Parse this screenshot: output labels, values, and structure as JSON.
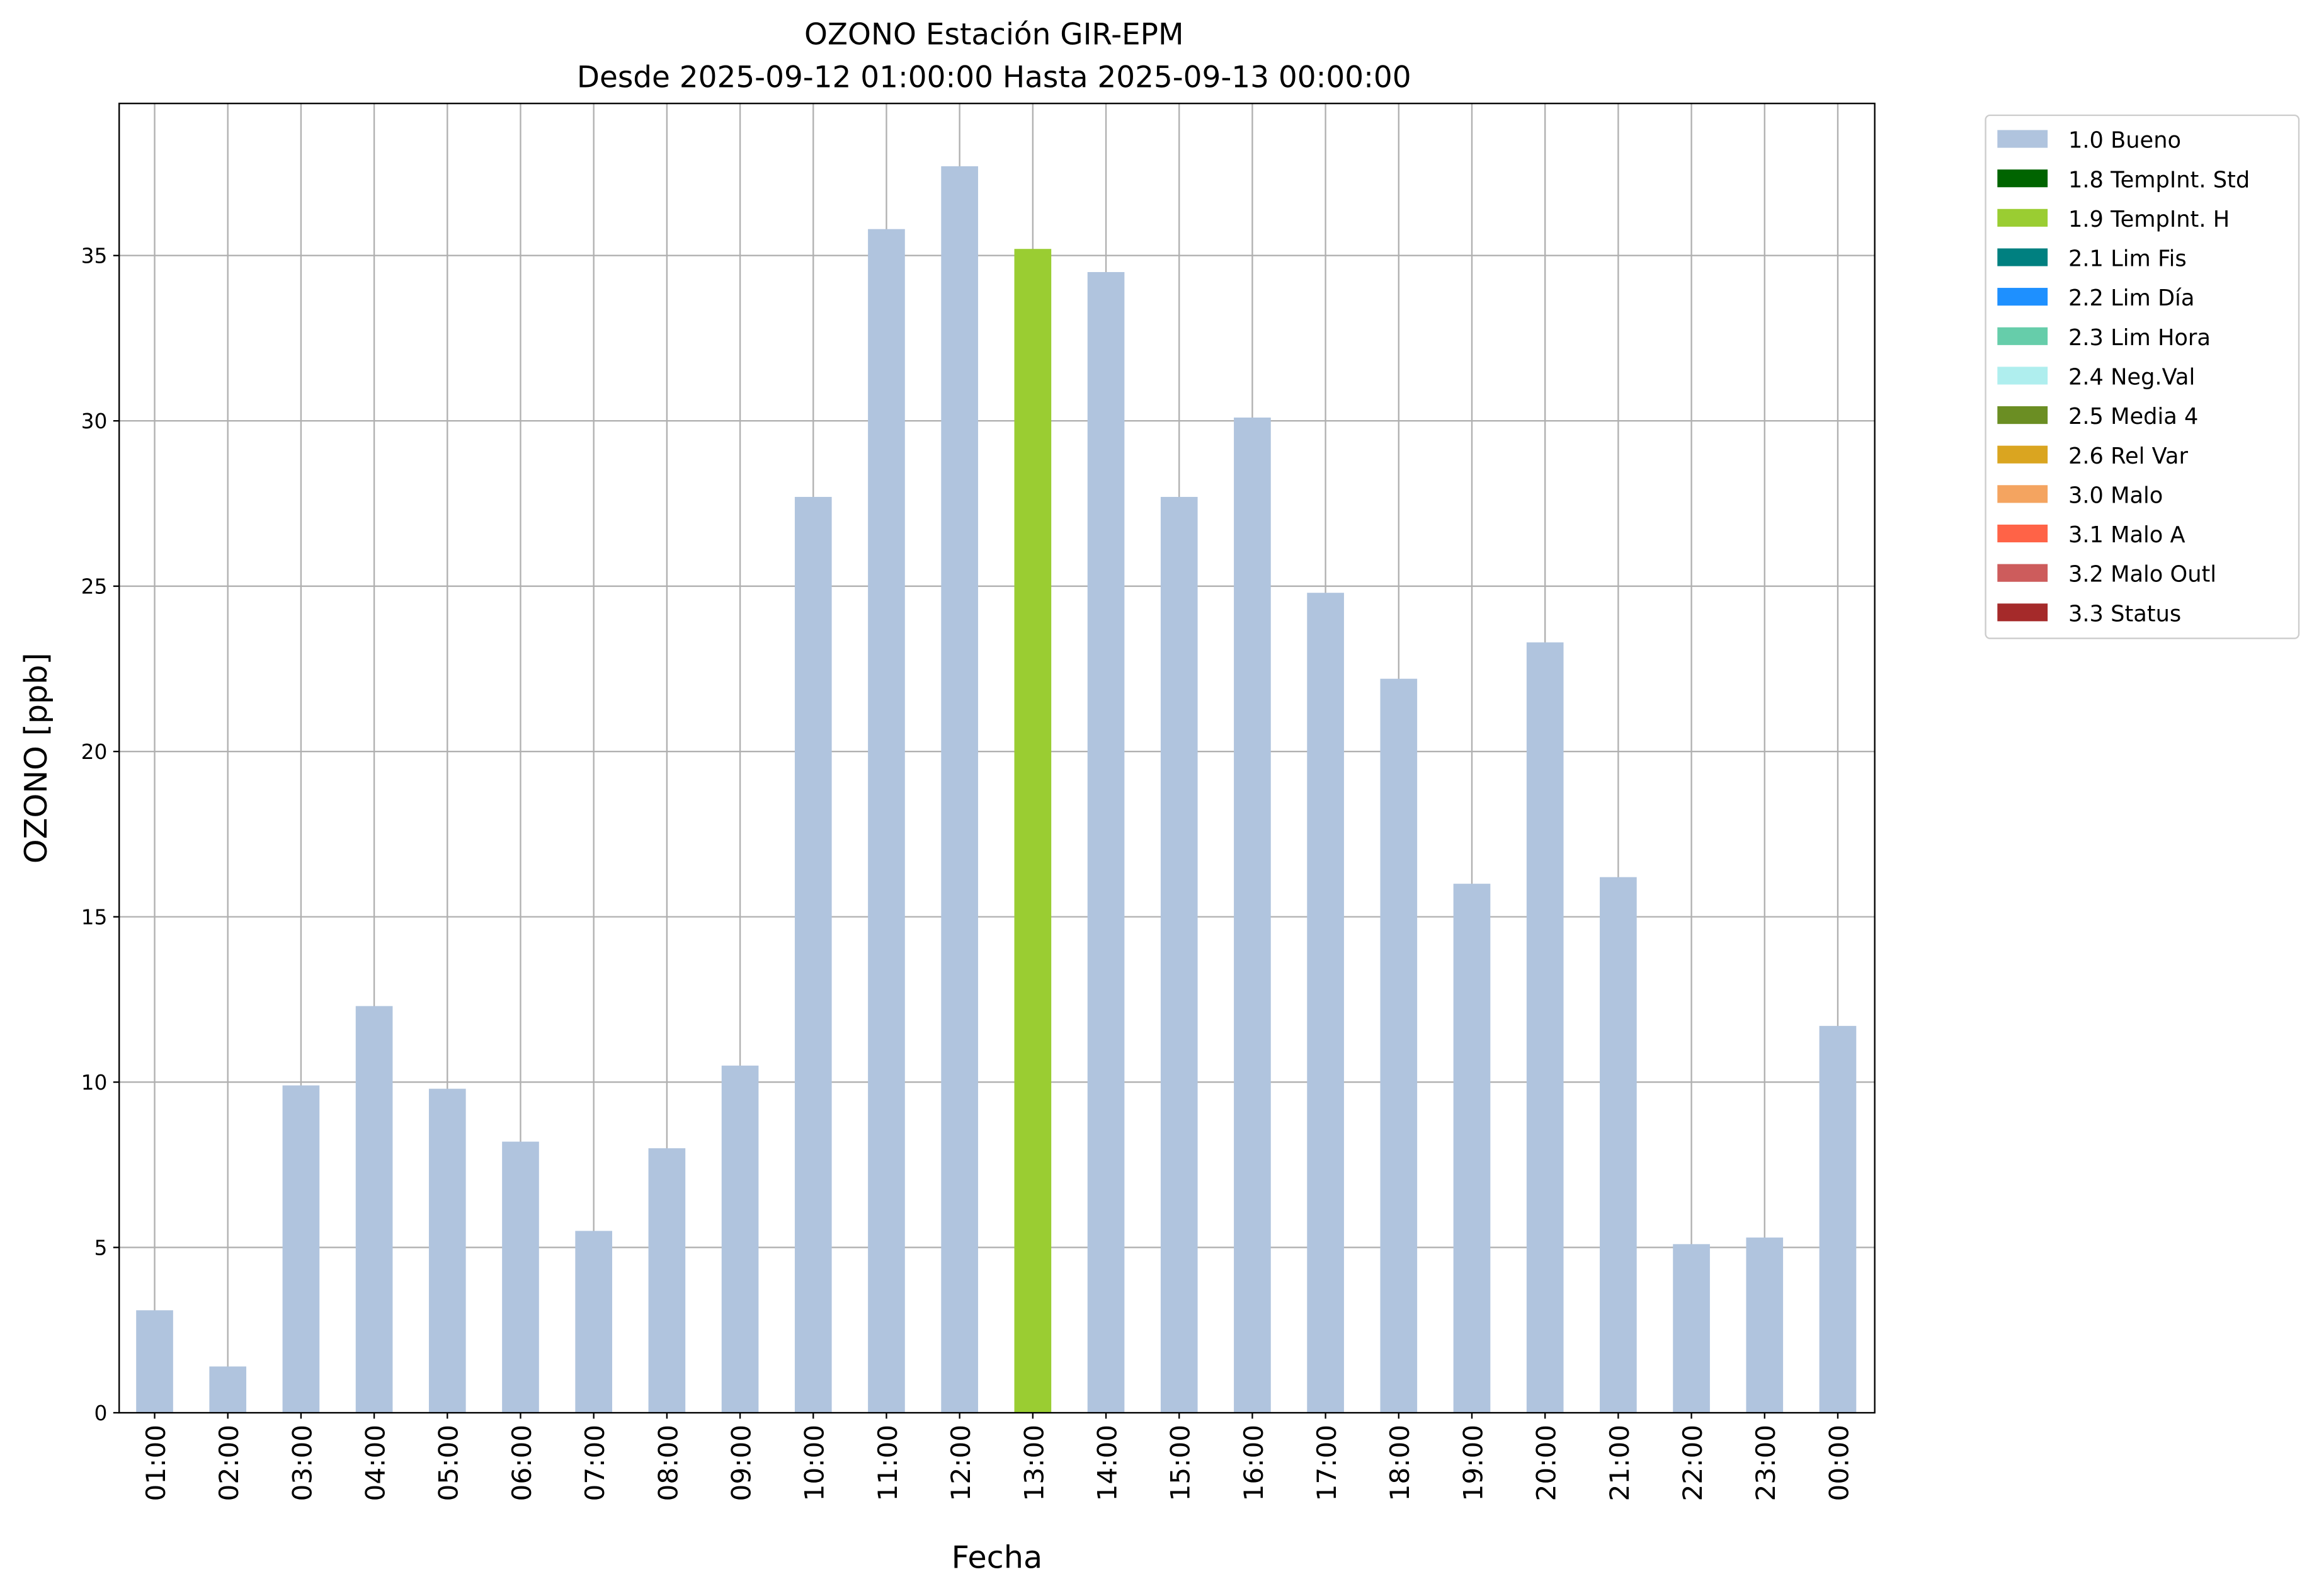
{
  "chart_data": {
    "type": "bar",
    "title": "OZONO Estación GIR-EPM",
    "subtitle": "Desde 2025-09-12 01:00:00 Hasta 2025-09-13 00:00:00",
    "xlabel": "Fecha",
    "ylabel": "OZONO [ppb]",
    "ylim": [
      0,
      39.6
    ],
    "yticks": [
      0,
      5,
      10,
      15,
      20,
      25,
      30,
      35
    ],
    "grid": true,
    "legend_placement": "outside-top-right",
    "categories": [
      "01:00",
      "02:00",
      "03:00",
      "04:00",
      "05:00",
      "06:00",
      "07:00",
      "08:00",
      "09:00",
      "10:00",
      "11:00",
      "12:00",
      "13:00",
      "14:00",
      "15:00",
      "16:00",
      "17:00",
      "18:00",
      "19:00",
      "20:00",
      "21:00",
      "22:00",
      "23:00",
      "00:00"
    ],
    "values": [
      3.1,
      1.4,
      9.9,
      12.3,
      9.8,
      8.2,
      5.5,
      8.0,
      10.5,
      27.7,
      35.8,
      37.7,
      35.2,
      34.5,
      27.7,
      30.1,
      24.8,
      22.2,
      16.0,
      23.3,
      16.2,
      5.1,
      5.3,
      11.7
    ],
    "flags": [
      "1.0 Bueno",
      "1.0 Bueno",
      "1.0 Bueno",
      "1.0 Bueno",
      "1.0 Bueno",
      "1.0 Bueno",
      "1.0 Bueno",
      "1.0 Bueno",
      "1.0 Bueno",
      "1.0 Bueno",
      "1.0 Bueno",
      "1.0 Bueno",
      "1.9 TempInt. H",
      "1.0 Bueno",
      "1.0 Bueno",
      "1.0 Bueno",
      "1.0 Bueno",
      "1.0 Bueno",
      "1.0 Bueno",
      "1.0 Bueno",
      "1.0 Bueno",
      "1.0 Bueno",
      "1.0 Bueno",
      "1.0 Bueno"
    ],
    "legend": [
      {
        "label": "1.0 Bueno",
        "color": "#b0c4de"
      },
      {
        "label": "1.8 TempInt. Std",
        "color": "#006400"
      },
      {
        "label": "1.9 TempInt. H",
        "color": "#9acd32"
      },
      {
        "label": "2.1 Lim Fis",
        "color": "#008080"
      },
      {
        "label": "2.2 Lim Día",
        "color": "#1e90ff"
      },
      {
        "label": "2.3 Lim Hora",
        "color": "#66cdaa"
      },
      {
        "label": "2.4 Neg.Val",
        "color": "#afeeee"
      },
      {
        "label": "2.5 Media 4",
        "color": "#6b8e23"
      },
      {
        "label": "2.6 Rel Var",
        "color": "#daa520"
      },
      {
        "label": "3.0 Malo",
        "color": "#f4a460"
      },
      {
        "label": "3.1 Malo A",
        "color": "#ff6347"
      },
      {
        "label": "3.2 Malo Outl",
        "color": "#cd5c5c"
      },
      {
        "label": "3.3 Status",
        "color": "#a52a2a"
      }
    ]
  }
}
